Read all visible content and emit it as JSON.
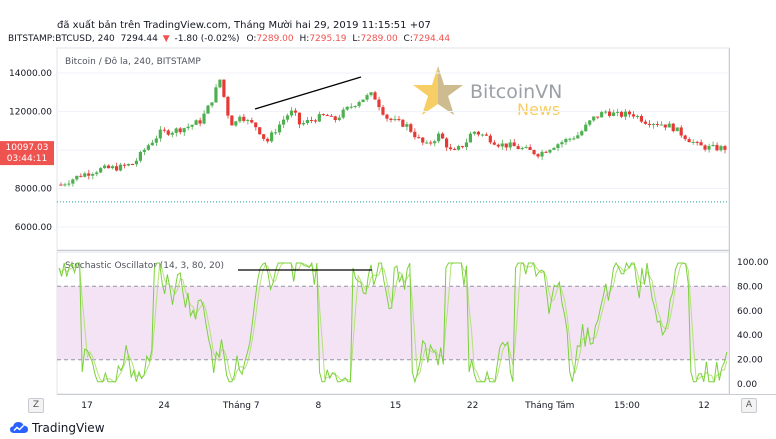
{
  "header": {
    "published": "đã xuất bản trên TradingView.com, Tháng Mười hai 29, 2019 11:15:51 +07",
    "symbol": "BITSTAMP:BTCUSD, 240",
    "last": "7294.44",
    "change_arrow": "▼",
    "change": "-1.80 (-0.02%)",
    "o_label": "O:",
    "o_value": "7289.00",
    "h_label": "H:",
    "h_value": "7295.19",
    "l_label": "L:",
    "l_value": "7289.00",
    "c_label": "C:",
    "c_value": "7294.44"
  },
  "watermark": {
    "title": "Bitcoin / Đô la, 240, BITSTAMP"
  },
  "logo": {
    "brand": "BitcoinVN",
    "sub": "News"
  },
  "price_badge": {
    "price": "10097.03",
    "countdown": "03:44:11"
  },
  "oscillator": {
    "title": "Stochastic Oscillator (14, 3, 80, 20)"
  },
  "controls": {
    "z": "Z",
    "a": "A"
  },
  "footer": {
    "brand": "TradingView"
  },
  "colors": {
    "up": "#26a69a",
    "down": "#ef5350",
    "candle_up": "#4caf50",
    "candle_down": "#e53935",
    "osc_k": "#7bd13c",
    "osc_d": "#b5e27a",
    "band": "#f3e3f5",
    "hline": "#26a69a",
    "trendline": "#000000"
  },
  "chart_data": [
    {
      "type": "candlestick",
      "title": "Bitcoin / Đô la, 240, BITSTAMP",
      "y_ticks": [
        6000,
        8000,
        10000,
        12000,
        14000
      ],
      "y_tick_labels": [
        "6000.00",
        "8000.00",
        "10000.00",
        "12000.00",
        "14000.00"
      ],
      "ylim": [
        4800,
        15300
      ],
      "x_ticks": [
        "17",
        "24",
        "Tháng 7",
        "8",
        "15",
        "22",
        "Tháng Tám",
        "15:00",
        "12"
      ],
      "horizontal_line": 7300,
      "close_trend": [
        [
          8200,
          0
        ],
        [
          8700,
          0.03
        ],
        [
          9000,
          0.06
        ],
        [
          9100,
          0.09
        ],
        [
          9300,
          0.11
        ],
        [
          10200,
          0.13
        ],
        [
          10900,
          0.15
        ],
        [
          11000,
          0.17
        ],
        [
          11200,
          0.19
        ],
        [
          11500,
          0.21
        ],
        [
          12400,
          0.225
        ],
        [
          13700,
          0.24
        ],
        [
          12000,
          0.25
        ],
        [
          11200,
          0.26
        ],
        [
          11900,
          0.27
        ],
        [
          11500,
          0.28
        ],
        [
          11200,
          0.295
        ],
        [
          10400,
          0.31
        ],
        [
          10900,
          0.32
        ],
        [
          11800,
          0.34
        ],
        [
          12000,
          0.35
        ],
        [
          11300,
          0.36
        ],
        [
          11600,
          0.38
        ],
        [
          11800,
          0.4
        ],
        [
          11500,
          0.41
        ],
        [
          12100,
          0.43
        ],
        [
          12600,
          0.45
        ],
        [
          12900,
          0.47
        ],
        [
          11700,
          0.49
        ],
        [
          11500,
          0.5
        ],
        [
          11300,
          0.52
        ],
        [
          10500,
          0.54
        ],
        [
          10200,
          0.55
        ],
        [
          10800,
          0.57
        ],
        [
          9800,
          0.59
        ],
        [
          10400,
          0.61
        ],
        [
          11000,
          0.62
        ],
        [
          10700,
          0.64
        ],
        [
          10300,
          0.66
        ],
        [
          10200,
          0.68
        ],
        [
          10000,
          0.7
        ],
        [
          9800,
          0.72
        ],
        [
          10200,
          0.74
        ],
        [
          10500,
          0.76
        ],
        [
          10800,
          0.78
        ],
        [
          11600,
          0.8
        ],
        [
          12000,
          0.82
        ],
        [
          11800,
          0.84
        ],
        [
          11900,
          0.86
        ],
        [
          11500,
          0.88
        ],
        [
          11400,
          0.9
        ],
        [
          11200,
          0.92
        ],
        [
          10700,
          0.94
        ],
        [
          10200,
          0.96
        ],
        [
          10097,
          0.98
        ]
      ]
    },
    {
      "type": "line",
      "title": "Stochastic Oscillator (14, 3, 80, 20)",
      "y_ticks": [
        0,
        20,
        40,
        60,
        80,
        100
      ],
      "y_tick_labels": [
        "0.00",
        "20.00",
        "40.00",
        "60.00",
        "80.00",
        "100.00"
      ],
      "ylim": [
        -8,
        108
      ],
      "bands": [
        20,
        80
      ]
    }
  ]
}
